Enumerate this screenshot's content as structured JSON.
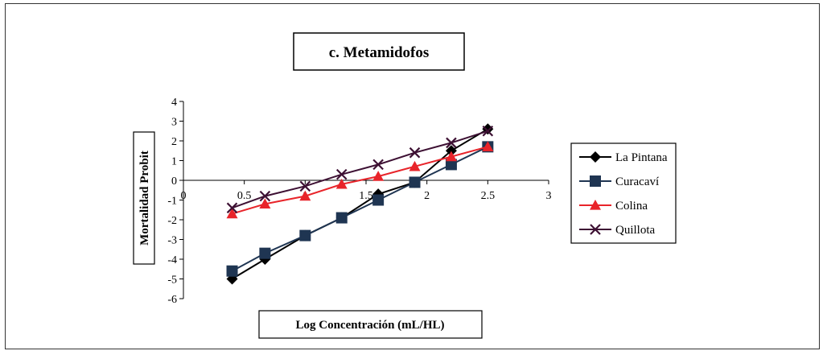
{
  "chart_data": {
    "type": "line",
    "title": "c. Metamidofos",
    "xlabel": "Log Concentración (mL/HL)",
    "ylabel": "Mortalidad Probit",
    "xlim": [
      0,
      3
    ],
    "ylim": [
      -6,
      4
    ],
    "x_ticks": [
      0,
      0.5,
      1,
      1.5,
      2,
      2.5,
      3
    ],
    "x_tick_labels": [
      "0",
      "0.5",
      "1",
      "1.5",
      "2",
      "2.5",
      "3"
    ],
    "y_ticks": [
      -6,
      -5,
      -4,
      -3,
      -2,
      -1,
      0,
      1,
      2,
      3,
      4
    ],
    "y_tick_labels": [
      "-6",
      "-5",
      "-4",
      "-3",
      "-2",
      "-1",
      "0",
      "1",
      "2",
      "3",
      "4"
    ],
    "grid": false,
    "legend_position": "right",
    "x": [
      0.4,
      0.67,
      1.0,
      1.3,
      1.6,
      1.9,
      2.2,
      2.5
    ],
    "series": [
      {
        "name": "La Pintana",
        "marker": "diamond",
        "color": "#000000",
        "values": [
          -5.0,
          -4.0,
          -2.8,
          -1.9,
          -0.7,
          -0.1,
          1.5,
          2.6
        ]
      },
      {
        "name": "Curacaví",
        "marker": "square",
        "color": "#1f3552",
        "values": [
          -4.6,
          -3.7,
          -2.8,
          -1.9,
          -1.0,
          -0.1,
          0.8,
          1.7
        ]
      },
      {
        "name": "Colina",
        "marker": "triangle",
        "color": "#e8242a",
        "values": [
          -1.7,
          -1.2,
          -0.8,
          -0.2,
          0.2,
          0.7,
          1.2,
          1.7
        ]
      },
      {
        "name": "Quillota",
        "marker": "x",
        "color": "#3d1033",
        "values": [
          -1.4,
          -0.8,
          -0.3,
          0.3,
          0.8,
          1.4,
          1.9,
          2.5
        ]
      }
    ]
  }
}
